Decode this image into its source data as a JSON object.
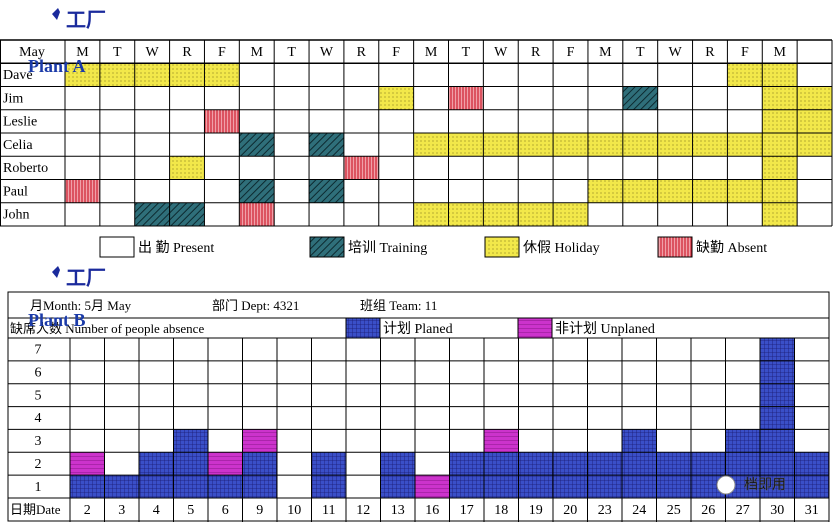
{
  "plant_a": {
    "title": "工厂",
    "subtitle": "Plant A",
    "month": "May",
    "days": [
      "M",
      "T",
      "W",
      "R",
      "F",
      "M",
      "T",
      "W",
      "R",
      "F",
      "M",
      "T",
      "W",
      "R",
      "F",
      "M",
      "T",
      "W",
      "R",
      "F",
      "M",
      null
    ],
    "legend": [
      {
        "label": "出 勤 Present",
        "color": "#ffffff"
      },
      {
        "label": "培训 Training",
        "color": "#2f6f7a"
      },
      {
        "label": "休假 Holiday",
        "color": "#f2e84a"
      },
      {
        "label": "缺勤 Absent",
        "color": "#e0575f"
      }
    ],
    "rows": [
      {
        "name": "Dave",
        "cells": [
          2,
          2,
          2,
          2,
          2,
          0,
          0,
          0,
          0,
          0,
          0,
          0,
          0,
          0,
          0,
          0,
          0,
          0,
          0,
          2,
          2,
          0
        ]
      },
      {
        "name": "Jim",
        "cells": [
          0,
          0,
          0,
          0,
          0,
          0,
          0,
          0,
          0,
          2,
          0,
          3,
          0,
          0,
          0,
          0,
          1,
          0,
          0,
          0,
          2,
          2
        ]
      },
      {
        "name": "Leslie",
        "cells": [
          0,
          0,
          0,
          0,
          3,
          0,
          0,
          0,
          0,
          0,
          0,
          0,
          0,
          0,
          0,
          0,
          0,
          0,
          0,
          0,
          2,
          2
        ]
      },
      {
        "name": "Celia",
        "cells": [
          0,
          0,
          0,
          0,
          0,
          1,
          0,
          1,
          0,
          0,
          2,
          2,
          2,
          2,
          2,
          2,
          2,
          2,
          2,
          2,
          2,
          2
        ]
      },
      {
        "name": "Roberto",
        "cells": [
          0,
          0,
          0,
          2,
          0,
          0,
          0,
          0,
          3,
          0,
          0,
          0,
          0,
          0,
          0,
          0,
          0,
          0,
          0,
          0,
          2,
          0
        ]
      },
      {
        "name": "Paul",
        "cells": [
          3,
          0,
          0,
          0,
          0,
          1,
          0,
          1,
          0,
          0,
          0,
          0,
          0,
          0,
          0,
          2,
          2,
          2,
          2,
          2,
          2,
          0
        ]
      },
      {
        "name": "John",
        "cells": [
          0,
          0,
          1,
          1,
          0,
          3,
          0,
          0,
          0,
          0,
          2,
          2,
          2,
          2,
          2,
          0,
          0,
          0,
          0,
          0,
          2,
          0
        ]
      }
    ]
  },
  "plant_b": {
    "title": "工厂",
    "subtitle": "Plant B",
    "month": "月Month:  5月  May",
    "dept": "部门 Dept: 4321",
    "team": "班组 Team: 11",
    "y_label": "缺席人数 Number of people absence",
    "x_label": "日期Date",
    "dates": [
      2,
      3,
      4,
      5,
      6,
      9,
      10,
      11,
      12,
      13,
      16,
      17,
      18,
      19,
      20,
      23,
      24,
      25,
      26,
      27,
      30,
      31
    ],
    "ylim": [
      0,
      7
    ],
    "yticks": [
      1,
      2,
      3,
      4,
      5,
      6,
      7
    ],
    "series": [
      {
        "name": "计划 Planed",
        "color": "#3a4fc8",
        "values": [
          1,
          1,
          2,
          3,
          1,
          2,
          0,
          2,
          0,
          2,
          0,
          2,
          2,
          2,
          2,
          2,
          3,
          2,
          2,
          3,
          7,
          2
        ]
      },
      {
        "name": "非计划 Unplaned",
        "color": "#cc33cc",
        "values": [
          1,
          0,
          0,
          0,
          1,
          1,
          0,
          0,
          0,
          0,
          1,
          0,
          1,
          0,
          0,
          0,
          0,
          0,
          0,
          0,
          0,
          0
        ]
      }
    ]
  },
  "watermark": "档即用"
}
